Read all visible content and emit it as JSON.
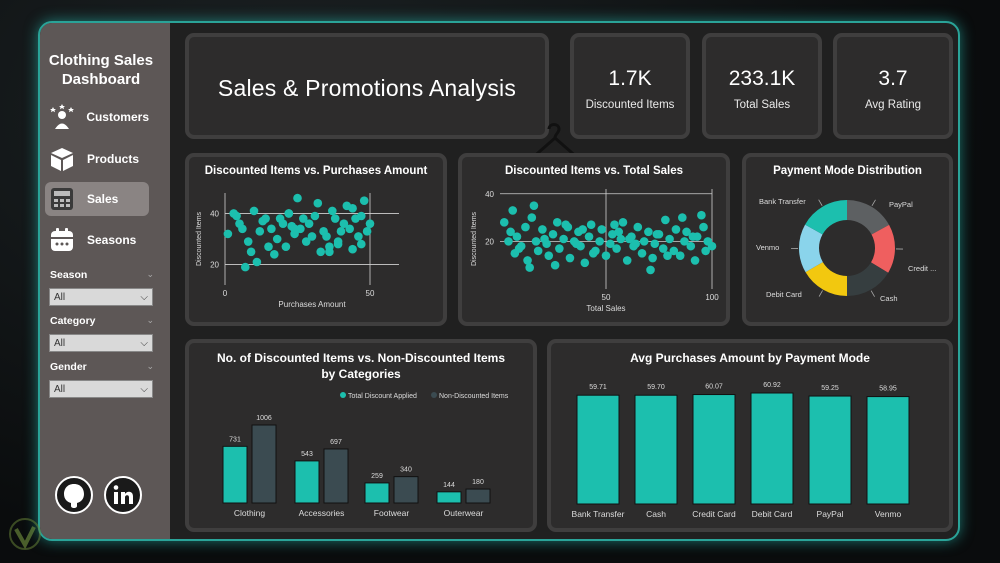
{
  "sidebar": {
    "brand_line1": "Clothing Sales",
    "brand_line2": "Dashboard",
    "nav": [
      {
        "label": "Customers",
        "icon": "customers-icon"
      },
      {
        "label": "Products",
        "icon": "box-icon"
      },
      {
        "label": "Sales",
        "icon": "register-icon",
        "active": true
      },
      {
        "label": "Seasons",
        "icon": "calendar-icon"
      }
    ],
    "filters": [
      {
        "label": "Season",
        "value": "All"
      },
      {
        "label": "Category",
        "value": "All"
      },
      {
        "label": "Gender",
        "value": "All"
      }
    ],
    "social": [
      "github-icon",
      "linkedin-icon"
    ]
  },
  "header": {
    "title": "Sales & Promotions Analysis"
  },
  "kpis": [
    {
      "value": "1.7K",
      "label": "Discounted Items"
    },
    {
      "value": "233.1K",
      "label": "Total Sales"
    },
    {
      "value": "3.7",
      "label": "Avg Rating"
    }
  ],
  "colors": {
    "accent": "#1cbfae",
    "dark_bar": "#3b4b51",
    "card": "#2d2c2c"
  },
  "chart_data": [
    {
      "type": "scatter",
      "title": "Discounted Items vs. Purchases Amount",
      "xlabel": "Purchases Amount",
      "ylabel": "Discounted Items",
      "xlim": [
        0,
        60
      ],
      "ylim": [
        12,
        48
      ],
      "xticks": [
        "0",
        "50"
      ],
      "yticks": [
        "20",
        "40"
      ],
      "x": [
        1,
        3,
        5,
        6,
        8,
        9,
        10,
        12,
        13,
        14,
        15,
        16,
        17,
        18,
        19,
        20,
        21,
        22,
        23,
        24,
        25,
        26,
        27,
        28,
        29,
        30,
        31,
        32,
        33,
        34,
        35,
        36,
        37,
        38,
        39,
        40,
        41,
        42,
        43,
        44,
        45,
        46,
        47,
        48,
        49,
        50,
        4,
        11,
        24,
        36,
        44,
        47,
        7,
        22,
        39
      ],
      "y": [
        32,
        40,
        36,
        34,
        29,
        25,
        41,
        33,
        37,
        38,
        27,
        34,
        24,
        30,
        38,
        36,
        27,
        40,
        35,
        32,
        46,
        34,
        38,
        29,
        36,
        31,
        39,
        44,
        25,
        33,
        31,
        27,
        41,
        38,
        28,
        33,
        36,
        43,
        34,
        26,
        38,
        31,
        39,
        45,
        33,
        36,
        39,
        21,
        34,
        25,
        42,
        28,
        19,
        40,
        29
      ]
    },
    {
      "type": "scatter",
      "title": "Discounted Items vs. Total Sales",
      "xlabel": "Total Sales",
      "ylabel": "Discounted Items",
      "xlim": [
        0,
        100
      ],
      "ylim": [
        0,
        42
      ],
      "xticks": [
        "50",
        "100"
      ],
      "yticks": [
        "20",
        "40"
      ],
      "x": [
        2,
        4,
        5,
        7,
        8,
        10,
        12,
        13,
        15,
        17,
        18,
        20,
        22,
        23,
        25,
        27,
        28,
        30,
        32,
        33,
        35,
        37,
        38,
        40,
        42,
        43,
        45,
        47,
        48,
        50,
        52,
        53,
        55,
        57,
        58,
        60,
        62,
        63,
        65,
        67,
        68,
        70,
        72,
        73,
        75,
        77,
        78,
        80,
        82,
        83,
        85,
        87,
        88,
        90,
        92,
        93,
        95,
        97,
        98,
        100,
        6,
        14,
        21,
        31,
        44,
        56,
        64,
        74,
        86,
        96,
        9,
        26,
        39,
        61,
        79,
        91,
        16,
        36,
        54,
        71
      ],
      "y": [
        28,
        20,
        24,
        15,
        22,
        18,
        26,
        12,
        30,
        20,
        16,
        25,
        19,
        14,
        23,
        28,
        17,
        21,
        26,
        13,
        20,
        24,
        18,
        11,
        22,
        27,
        16,
        20,
        25,
        14,
        19,
        23,
        17,
        21,
        28,
        12,
        22,
        18,
        26,
        15,
        20,
        24,
        13,
        19,
        23,
        17,
        29,
        21,
        16,
        25,
        14,
        20,
        24,
        18,
        12,
        22,
        31,
        16,
        20,
        18,
        33,
        9,
        21,
        27,
        15,
        24,
        19,
        23,
        30,
        26,
        17,
        10,
        25,
        21,
        14,
        22,
        35,
        19,
        27,
        8
      ]
    },
    {
      "type": "pie",
      "title": "Payment Mode Distribution",
      "labels": [
        "PayPal",
        "Credit ...",
        "Cash",
        "Debit Card",
        "Venmo",
        "Bank Transfer"
      ],
      "values": [
        17.0,
        16.6,
        16.4,
        16.6,
        16.5,
        16.9
      ],
      "colors": [
        "#5d6062",
        "#ef5f5f",
        "#363e40",
        "#f2c80f",
        "#8ad4eb",
        "#1cbfae"
      ]
    },
    {
      "type": "bar",
      "title": "No. of Discounted Items vs. Non-Discounted Items by Categories",
      "categories": [
        "Clothing",
        "Accessories",
        "Footwear",
        "Outerwear"
      ],
      "series": [
        {
          "name": "Total Discount Applied",
          "values": [
            731,
            543,
            259,
            144
          ]
        },
        {
          "name": "Non-Discounted Items",
          "values": [
            1006,
            697,
            340,
            180
          ]
        }
      ],
      "legend": "top-right"
    },
    {
      "type": "bar",
      "title": "Avg Purchases Amount by Payment Mode",
      "categories": [
        "Bank Transfer",
        "Cash",
        "Credit Card",
        "Debit Card",
        "PayPal",
        "Venmo"
      ],
      "values": [
        59.71,
        59.7,
        60.07,
        60.92,
        59.25,
        58.95
      ],
      "labels": [
        "59.71",
        "59.70",
        "60.07",
        "60.92",
        "59.25",
        "58.95"
      ]
    }
  ]
}
